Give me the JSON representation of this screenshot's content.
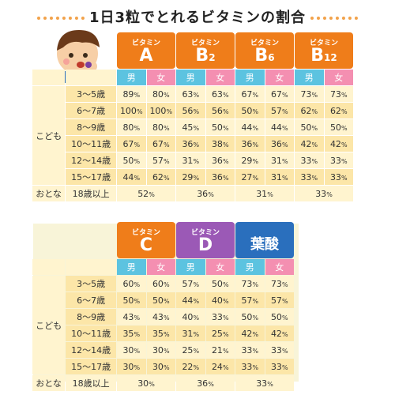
{
  "title": "1日3粒でとれるビタミンの割合",
  "top": {
    "headers": [
      {
        "small": "ビタミン",
        "big": "A",
        "sub": ""
      },
      {
        "small": "ビタミン",
        "big": "B",
        "sub": "2"
      },
      {
        "small": "ビタミン",
        "big": "B",
        "sub": "6"
      },
      {
        "small": "ビタミン",
        "big": "B",
        "sub": "12"
      }
    ],
    "sex": [
      "男",
      "女"
    ],
    "category_child": "こども",
    "category_adult": "おとな",
    "rows": [
      {
        "age": "3〜5歳",
        "v": [
          "89",
          "80",
          "63",
          "63",
          "67",
          "67",
          "73",
          "73"
        ]
      },
      {
        "age": "6〜7歳",
        "v": [
          "100",
          "100",
          "56",
          "56",
          "50",
          "57",
          "62",
          "62"
        ]
      },
      {
        "age": "8〜9歳",
        "v": [
          "80",
          "80",
          "45",
          "50",
          "44",
          "44",
          "50",
          "50"
        ]
      },
      {
        "age": "10〜11歳",
        "v": [
          "67",
          "67",
          "36",
          "38",
          "36",
          "36",
          "42",
          "42"
        ]
      },
      {
        "age": "12〜14歳",
        "v": [
          "50",
          "57",
          "31",
          "36",
          "29",
          "31",
          "33",
          "33"
        ]
      },
      {
        "age": "15〜17歳",
        "v": [
          "44",
          "62",
          "29",
          "36",
          "27",
          "31",
          "33",
          "33"
        ]
      }
    ],
    "adult": {
      "age": "18歳以上",
      "v": [
        "52",
        "36",
        "31",
        "33"
      ]
    }
  },
  "bottom": {
    "headers": [
      {
        "small": "ビタミン",
        "big": "C"
      },
      {
        "small": "ビタミン",
        "big": "D"
      },
      {
        "small": "",
        "big": "葉酸"
      }
    ],
    "sex": [
      "男",
      "女"
    ],
    "category_child": "こども",
    "category_adult": "おとな",
    "rows": [
      {
        "age": "3〜5歳",
        "v": [
          "60",
          "60",
          "57",
          "50",
          "73",
          "73"
        ]
      },
      {
        "age": "6〜7歳",
        "v": [
          "50",
          "50",
          "44",
          "40",
          "57",
          "57"
        ]
      },
      {
        "age": "8〜9歳",
        "v": [
          "43",
          "43",
          "40",
          "33",
          "50",
          "50"
        ]
      },
      {
        "age": "10〜11歳",
        "v": [
          "35",
          "35",
          "31",
          "25",
          "42",
          "42"
        ]
      },
      {
        "age": "12〜14歳",
        "v": [
          "30",
          "30",
          "25",
          "21",
          "33",
          "33"
        ]
      },
      {
        "age": "15〜17歳",
        "v": [
          "30",
          "30",
          "22",
          "24",
          "33",
          "33"
        ]
      }
    ],
    "adult": {
      "age": "18歳以上",
      "v": [
        "30",
        "36",
        "33"
      ]
    }
  },
  "pct": "%"
}
